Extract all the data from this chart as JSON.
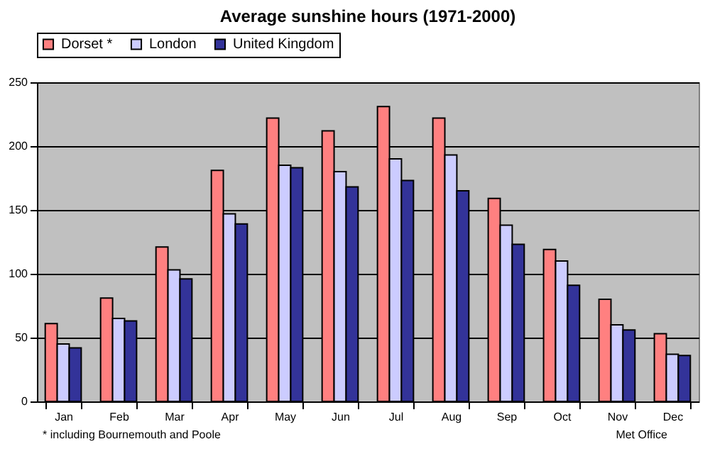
{
  "chart_data": {
    "type": "bar",
    "title": "Average sunshine hours (1971-2000)",
    "categories": [
      "Jan",
      "Feb",
      "Mar",
      "Apr",
      "May",
      "Jun",
      "Jul",
      "Aug",
      "Sep",
      "Oct",
      "Nov",
      "Dec"
    ],
    "series": [
      {
        "name": "Dorset *",
        "color": "#ff8080",
        "values": [
          61,
          81,
          121,
          181,
          222,
          212,
          231,
          222,
          159,
          119,
          80,
          53
        ]
      },
      {
        "name": "London",
        "color": "#ccccff",
        "values": [
          45,
          65,
          103,
          147,
          185,
          180,
          190,
          193,
          138,
          110,
          60,
          37
        ]
      },
      {
        "name": "United Kingdom",
        "color": "#333399",
        "values": [
          42,
          63,
          96,
          139,
          183,
          168,
          173,
          165,
          123,
          91,
          56,
          36
        ]
      }
    ],
    "ylim": [
      0,
      250
    ],
    "yticks": [
      0,
      50,
      100,
      150,
      200,
      250
    ],
    "grid": "y",
    "legend": "top",
    "annotations": [
      "* including Bournemouth and Poole",
      "Met Office"
    ]
  }
}
